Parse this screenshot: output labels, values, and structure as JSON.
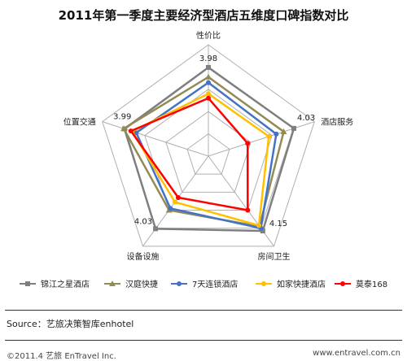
{
  "chart_data": {
    "type": "radar",
    "title": "2011年第一季度主要经济型酒店五维度口碑指数对比",
    "axes": [
      "性价比",
      "酒店服务",
      "房间卫生",
      "设备设施",
      "位置交通"
    ],
    "range": [
      0,
      5
    ],
    "rings": 5,
    "grid": true,
    "legend_position": "bottom",
    "series": [
      {
        "name": "锦江之星酒店",
        "color": "#7f7f7f",
        "marker": "square",
        "values": [
          3.98,
          4.03,
          4.15,
          4.03,
          3.95
        ],
        "show_labels": true
      },
      {
        "name": "汉庭快捷",
        "color": "#948a54",
        "marker": "triangle",
        "values": [
          3.55,
          3.55,
          3.9,
          3.0,
          3.99
        ],
        "show_labels": false
      },
      {
        "name": "7天连锁酒店",
        "color": "#4472c4",
        "marker": "circle",
        "values": [
          3.3,
          3.2,
          4.0,
          2.9,
          3.4
        ],
        "show_labels": false
      },
      {
        "name": "如家快捷酒店",
        "color": "#ffc000",
        "marker": "circle",
        "values": [
          2.8,
          2.85,
          3.85,
          2.55,
          3.6
        ],
        "show_labels": false
      },
      {
        "name": "莫泰168",
        "color": "#ff0000",
        "marker": "circle",
        "values": [
          2.6,
          1.85,
          3.0,
          2.3,
          3.65
        ],
        "show_labels": false
      }
    ],
    "value_labels": [
      {
        "text": "3.98",
        "axis": 0
      },
      {
        "text": "4.03",
        "axis": 1
      },
      {
        "text": "4.15",
        "axis": 2
      },
      {
        "text": "4.03",
        "axis": 3
      },
      {
        "text": "3.99",
        "axis": 4
      }
    ]
  },
  "source_text": "Source：艺旅决策智库enhotel",
  "footer": {
    "copyright": "©2011.4  艺旅 EnTravel Inc.",
    "website": "www.entravel.com.cn"
  }
}
